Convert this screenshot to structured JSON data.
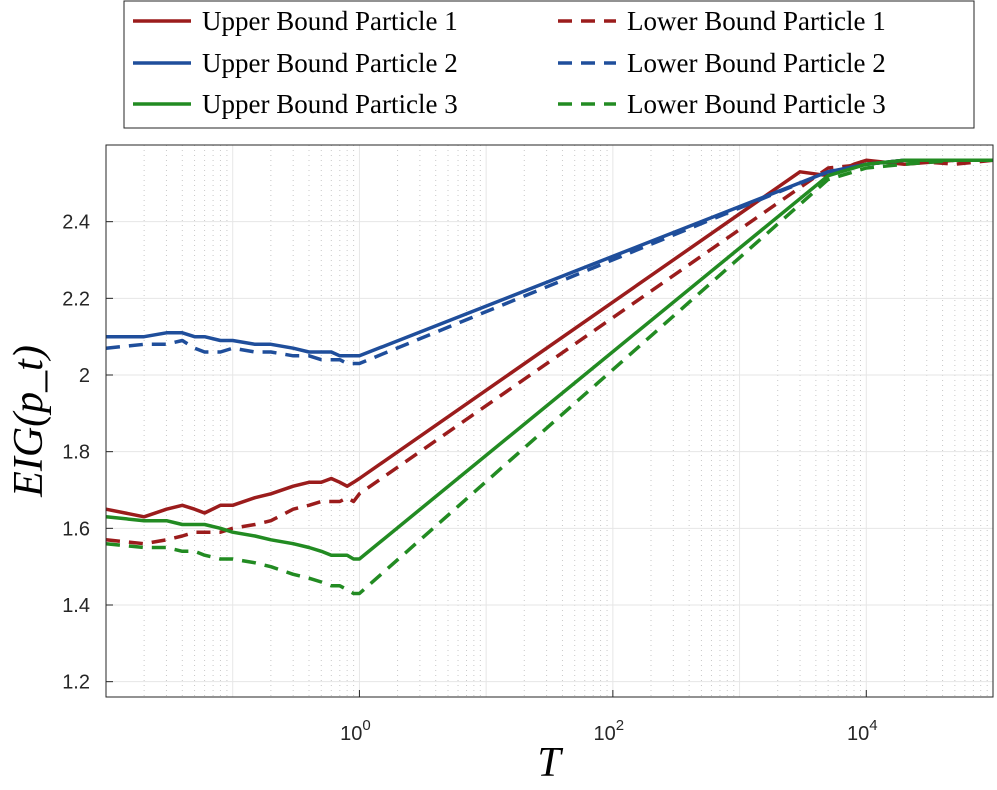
{
  "chart_data": {
    "type": "line",
    "title": "",
    "xlabel": "T",
    "ylabel": "EIG(p_t)",
    "xscale": "log",
    "xlim": [
      0.01,
      100000
    ],
    "ylim": [
      1.16,
      2.6
    ],
    "grid": true,
    "legend_position": "top-center",
    "x_ticks": [
      {
        "value": 1,
        "base": "10",
        "exp": "0"
      },
      {
        "value": 100,
        "base": "10",
        "exp": "2"
      },
      {
        "value": 10000,
        "base": "10",
        "exp": "4"
      }
    ],
    "y_ticks": [
      {
        "value": 1.2,
        "label": "1.2"
      },
      {
        "value": 1.4,
        "label": "1.4"
      },
      {
        "value": 1.6,
        "label": "1.6"
      },
      {
        "value": 1.8,
        "label": "1.8"
      },
      {
        "value": 2.0,
        "label": "2"
      },
      {
        "value": 2.2,
        "label": "2.2"
      },
      {
        "value": 2.4,
        "label": "2.4"
      }
    ],
    "series": [
      {
        "name": "Upper Bound Particle 1",
        "color": "#9B1C1C",
        "dash": "solid",
        "x": [
          0.01,
          0.02,
          0.03,
          0.04,
          0.05,
          0.06,
          0.08,
          0.1,
          0.15,
          0.2,
          0.3,
          0.4,
          0.5,
          0.6,
          0.7,
          0.8,
          0.9,
          1,
          3000,
          5000,
          8000,
          10000,
          20000,
          50000,
          100000
        ],
        "y": [
          1.65,
          1.63,
          1.65,
          1.66,
          1.65,
          1.64,
          1.66,
          1.66,
          1.68,
          1.69,
          1.71,
          1.72,
          1.72,
          1.73,
          1.72,
          1.71,
          1.72,
          1.73,
          2.53,
          2.52,
          2.55,
          2.56,
          2.55,
          2.56,
          2.56
        ]
      },
      {
        "name": "Lower Bound Particle 1",
        "color": "#9B1C1C",
        "dash": "dashed",
        "x": [
          0.01,
          0.02,
          0.03,
          0.04,
          0.05,
          0.06,
          0.08,
          0.1,
          0.15,
          0.2,
          0.3,
          0.4,
          0.5,
          0.6,
          0.7,
          0.8,
          0.9,
          1,
          5000,
          10000,
          20000,
          50000,
          100000
        ],
        "y": [
          1.57,
          1.56,
          1.57,
          1.58,
          1.59,
          1.59,
          1.59,
          1.6,
          1.61,
          1.62,
          1.65,
          1.66,
          1.67,
          1.67,
          1.67,
          1.68,
          1.67,
          1.69,
          2.54,
          2.55,
          2.56,
          2.55,
          2.56
        ]
      },
      {
        "name": "Upper Bound Particle 2",
        "color": "#1F4E9B",
        "dash": "solid",
        "x": [
          0.01,
          0.02,
          0.03,
          0.04,
          0.05,
          0.06,
          0.08,
          0.1,
          0.15,
          0.2,
          0.3,
          0.4,
          0.5,
          0.6,
          0.7,
          0.8,
          0.9,
          1,
          5000,
          10000,
          20000,
          50000,
          100000
        ],
        "y": [
          2.1,
          2.1,
          2.11,
          2.11,
          2.1,
          2.1,
          2.09,
          2.09,
          2.08,
          2.08,
          2.07,
          2.06,
          2.06,
          2.06,
          2.05,
          2.05,
          2.05,
          2.05,
          2.53,
          2.55,
          2.56,
          2.56,
          2.56
        ]
      },
      {
        "name": "Lower Bound Particle 2",
        "color": "#1F4E9B",
        "dash": "dashed",
        "x": [
          0.01,
          0.02,
          0.03,
          0.04,
          0.05,
          0.06,
          0.08,
          0.1,
          0.15,
          0.2,
          0.3,
          0.4,
          0.5,
          0.6,
          0.7,
          0.8,
          0.9,
          1,
          5000,
          10000,
          20000,
          50000,
          100000
        ],
        "y": [
          2.07,
          2.08,
          2.08,
          2.09,
          2.07,
          2.06,
          2.06,
          2.07,
          2.06,
          2.06,
          2.05,
          2.05,
          2.04,
          2.04,
          2.04,
          2.03,
          2.03,
          2.03,
          2.53,
          2.55,
          2.56,
          2.56,
          2.56
        ]
      },
      {
        "name": "Upper Bound Particle 3",
        "color": "#228B22",
        "dash": "solid",
        "x": [
          0.01,
          0.02,
          0.03,
          0.04,
          0.05,
          0.06,
          0.08,
          0.1,
          0.15,
          0.2,
          0.3,
          0.4,
          0.5,
          0.6,
          0.7,
          0.8,
          0.9,
          1,
          5000,
          10000,
          20000,
          50000,
          100000
        ],
        "y": [
          1.63,
          1.62,
          1.62,
          1.61,
          1.61,
          1.61,
          1.6,
          1.59,
          1.58,
          1.57,
          1.56,
          1.55,
          1.54,
          1.53,
          1.53,
          1.53,
          1.52,
          1.52,
          2.52,
          2.55,
          2.56,
          2.56,
          2.56
        ]
      },
      {
        "name": "Lower Bound Particle 3",
        "color": "#228B22",
        "dash": "dashed",
        "x": [
          0.01,
          0.02,
          0.03,
          0.04,
          0.05,
          0.06,
          0.08,
          0.1,
          0.15,
          0.2,
          0.3,
          0.4,
          0.5,
          0.6,
          0.7,
          0.8,
          0.9,
          1,
          5000,
          10000,
          20000,
          50000,
          100000
        ],
        "y": [
          1.56,
          1.55,
          1.55,
          1.54,
          1.54,
          1.53,
          1.52,
          1.52,
          1.51,
          1.5,
          1.48,
          1.47,
          1.46,
          1.45,
          1.45,
          1.44,
          1.43,
          1.43,
          2.51,
          2.54,
          2.55,
          2.56,
          2.56
        ]
      }
    ]
  }
}
